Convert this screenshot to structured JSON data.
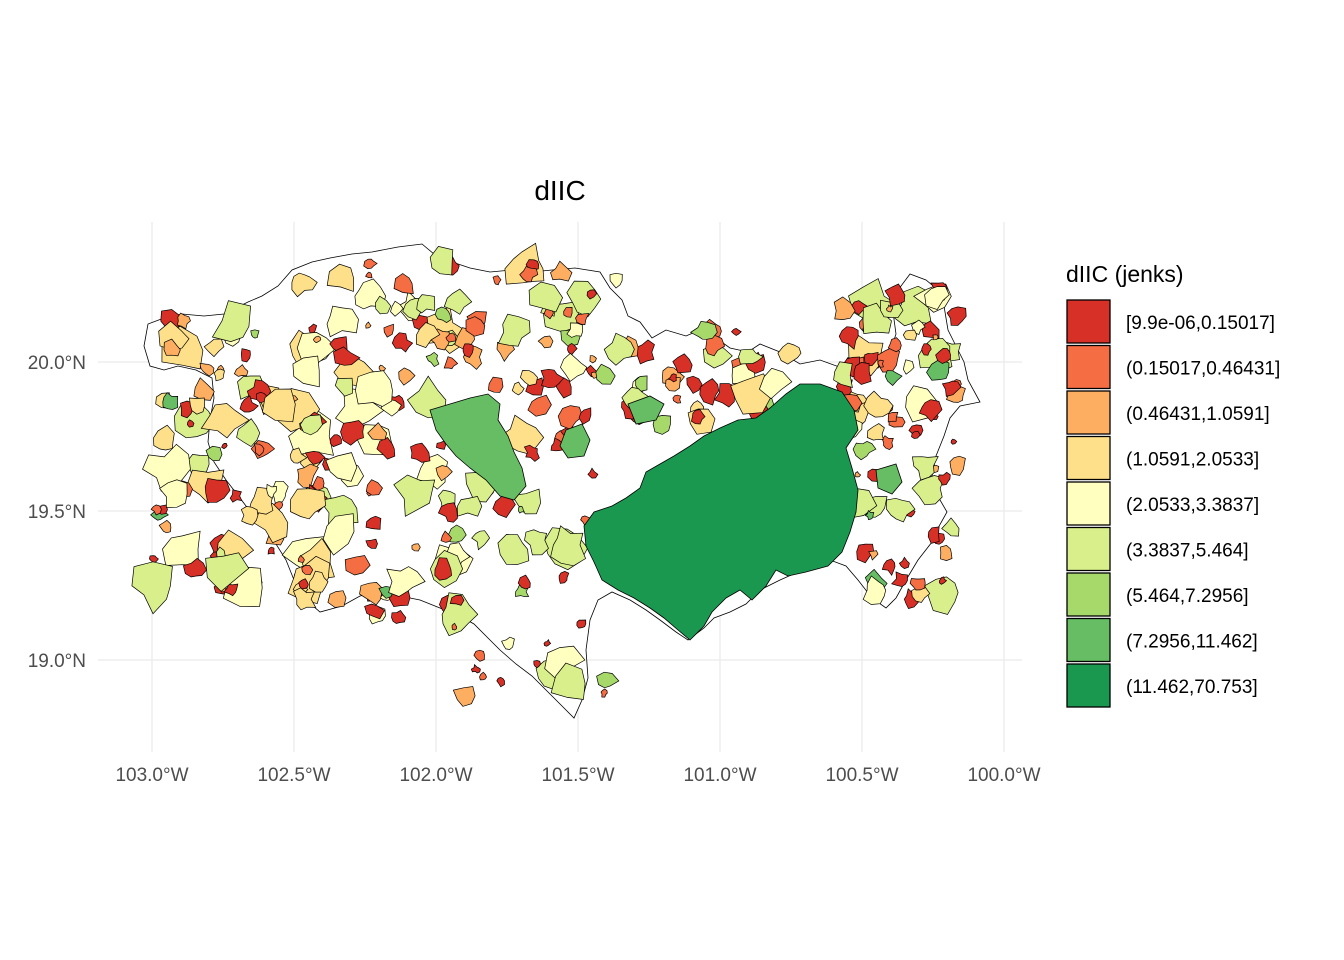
{
  "title": "dIIC",
  "chart_data": {
    "type": "choropleth",
    "title": "dIIC",
    "x_ticks": [
      "103.0°W",
      "102.5°W",
      "102.0°W",
      "101.5°W",
      "101.0°W",
      "100.5°W",
      "100.0°W"
    ],
    "y_ticks": [
      "20.0°N",
      "19.5°N",
      "19.0°N"
    ],
    "x_tick_values": [
      -103.0,
      -102.5,
      -102.0,
      -101.5,
      -101.0,
      -100.5,
      -100.0
    ],
    "y_tick_values": [
      20.0,
      19.5,
      19.0
    ],
    "xlim": [
      -103.2,
      -99.9
    ],
    "ylim": [
      18.75,
      20.45
    ],
    "grid": true,
    "legend": {
      "title": "dIIC (jenks)",
      "position": "right",
      "classes": [
        {
          "label": "[9.9e-06,0.15017]",
          "color": "#d73027"
        },
        {
          "label": "(0.15017,0.46431]",
          "color": "#f46d43"
        },
        {
          "label": "(0.46431,1.0591]",
          "color": "#fdae61"
        },
        {
          "label": "(1.0591,2.0533]",
          "color": "#fee08b"
        },
        {
          "label": "(2.0533,3.3837]",
          "color": "#ffffbf"
        },
        {
          "label": "(3.3837,5.464]",
          "color": "#d9ef8b"
        },
        {
          "label": "(5.464,7.2956]",
          "color": "#a6d96a"
        },
        {
          "label": "(7.2956,11.462]",
          "color": "#66bd63"
        },
        {
          "label": "(11.462,70.753]",
          "color": "#1a9850"
        }
      ]
    }
  }
}
